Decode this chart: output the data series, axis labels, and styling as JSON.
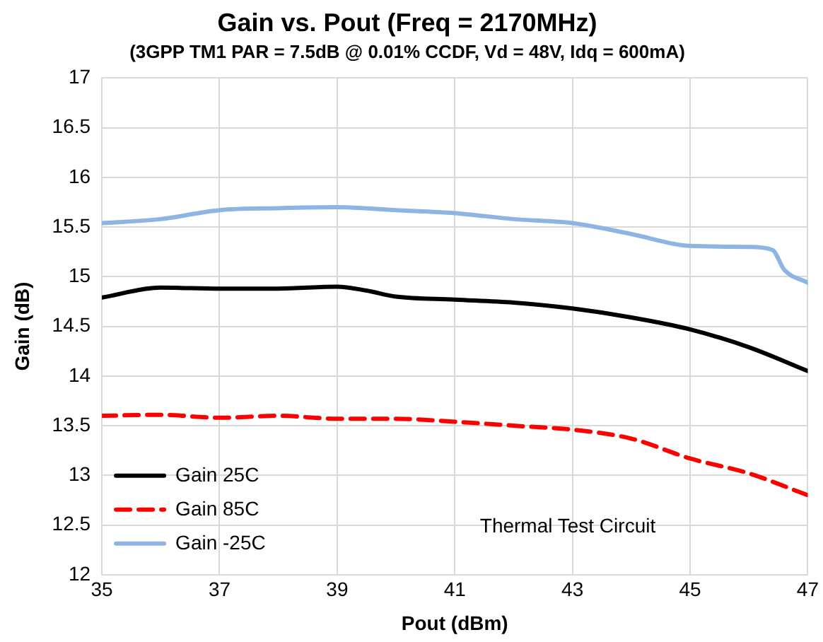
{
  "chart_data": {
    "type": "line",
    "title": "Gain vs. Pout (Freq = 2170MHz)",
    "subtitle": "(3GPP TM1 PAR = 7.5dB @ 0.01% CCDF, Vd = 48V, Idq = 600mA)",
    "xlabel": "Pout (dBm)",
    "ylabel": "Gain (dB)",
    "xlim": [
      35,
      47
    ],
    "xticks": [
      35,
      37,
      39,
      41,
      43,
      45,
      47
    ],
    "ylim": [
      12,
      17
    ],
    "yticks": [
      12,
      12.5,
      13,
      13.5,
      14,
      14.5,
      15,
      15.5,
      16,
      16.5,
      17
    ],
    "grid": true,
    "legend": "bottom left",
    "marker": "none",
    "annotations": [
      "Thermal Test Circuit"
    ],
    "series": [
      {
        "name": "Gain 25C",
        "color": "#000000",
        "line_style": "solid",
        "x": [
          35,
          36,
          37,
          38,
          39,
          39.5,
          40,
          41,
          42,
          43,
          44,
          45,
          46,
          47
        ],
        "values": [
          14.79,
          14.89,
          14.88,
          14.88,
          14.9,
          14.86,
          14.8,
          14.77,
          14.74,
          14.68,
          14.59,
          14.47,
          14.29,
          14.05
        ]
      },
      {
        "name": "Gain 85C",
        "color": "#ff0000",
        "line_style": "dashed",
        "x": [
          35,
          36,
          37,
          38,
          39,
          40,
          41,
          42,
          43,
          44,
          45,
          46,
          47
        ],
        "values": [
          13.6,
          13.61,
          13.58,
          13.6,
          13.57,
          13.57,
          13.54,
          13.5,
          13.46,
          13.37,
          13.17,
          13.02,
          12.8
        ]
      },
      {
        "name": "Gain -25C",
        "color": "#8eb4e3",
        "line_style": "solid",
        "x": [
          35,
          36,
          37,
          38,
          39,
          40,
          41,
          42,
          43,
          44,
          45,
          46,
          46.4,
          46.6,
          47
        ],
        "values": [
          15.54,
          15.58,
          15.67,
          15.69,
          15.7,
          15.67,
          15.64,
          15.58,
          15.54,
          15.43,
          15.31,
          15.3,
          15.27,
          15.07,
          14.94
        ]
      }
    ]
  }
}
